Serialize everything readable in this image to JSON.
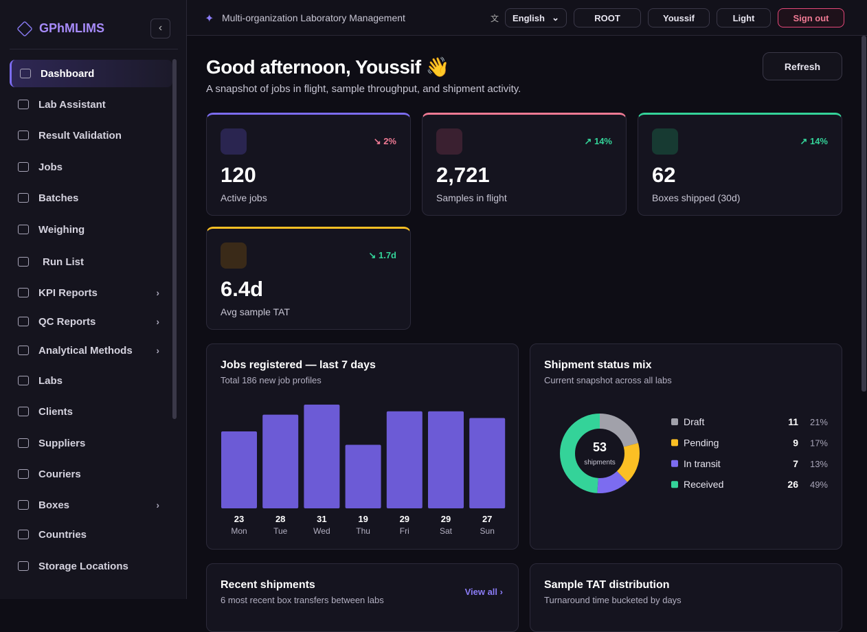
{
  "sidebar": {
    "brand": "GPhMLIMS",
    "items": [
      "Dashboard",
      "Lab Assistant",
      "Result Validation",
      "Jobs",
      "Batches",
      "Weighing",
      "Run List",
      "KPI Reports",
      "QC Reports",
      "Analytical Methods",
      "Labs",
      "Clients",
      "Suppliers",
      "Couriers",
      "Boxes",
      "Countries",
      "Storage Locations"
    ]
  },
  "topbar": {
    "title": "Multi-organization Laboratory Management",
    "language": "English",
    "org": "ROOT",
    "user": "Youssif",
    "theme": "Light",
    "signout": "Sign out"
  },
  "header": {
    "greeting": "Good afternoon, Youssif 👋",
    "subtitle": "A snapshot of jobs in flight, sample throughput, and shipment activity.",
    "refresh": "Refresh"
  },
  "kpis": [
    {
      "value": "120",
      "label": "Active jobs",
      "change": "2%"
    },
    {
      "value": "2,721",
      "label": "Samples in flight",
      "change": "14%"
    },
    {
      "value": "62",
      "label": "Boxes shipped (30d)",
      "change": "14%"
    },
    {
      "value": "6.4d",
      "label": "Avg sample TAT",
      "change": "1.7d"
    }
  ],
  "chart_data": [
    {
      "type": "bar",
      "title": "Jobs registered — last 7 days",
      "subtitle": "Total 186 new job profiles",
      "categories": [
        "Mon",
        "Tue",
        "Wed",
        "Thu",
        "Fri",
        "Sat",
        "Sun"
      ],
      "values": [
        23,
        28,
        31,
        19,
        29,
        29,
        27
      ],
      "color": "#6c5bd6"
    },
    {
      "type": "donut",
      "title": "Shipment status mix",
      "subtitle": "Current snapshot across all labs",
      "total": 53,
      "total_label": "shipments",
      "categories": [
        "Draft",
        "Pending",
        "In transit",
        "Received"
      ],
      "values": [
        11,
        9,
        7,
        26
      ],
      "percent_labels": [
        "21%",
        "17%",
        "13%",
        "49%"
      ],
      "colors": [
        "#a1a1aa",
        "#fbbf24",
        "#7c6cf0",
        "#34d399"
      ]
    }
  ],
  "panels": [
    {
      "title": "Recent shipments",
      "subtitle": "6 most recent box transfers between labs",
      "link": "View all"
    },
    {
      "title": "Sample TAT distribution",
      "subtitle": "Turnaround time bucketed by days"
    }
  ]
}
